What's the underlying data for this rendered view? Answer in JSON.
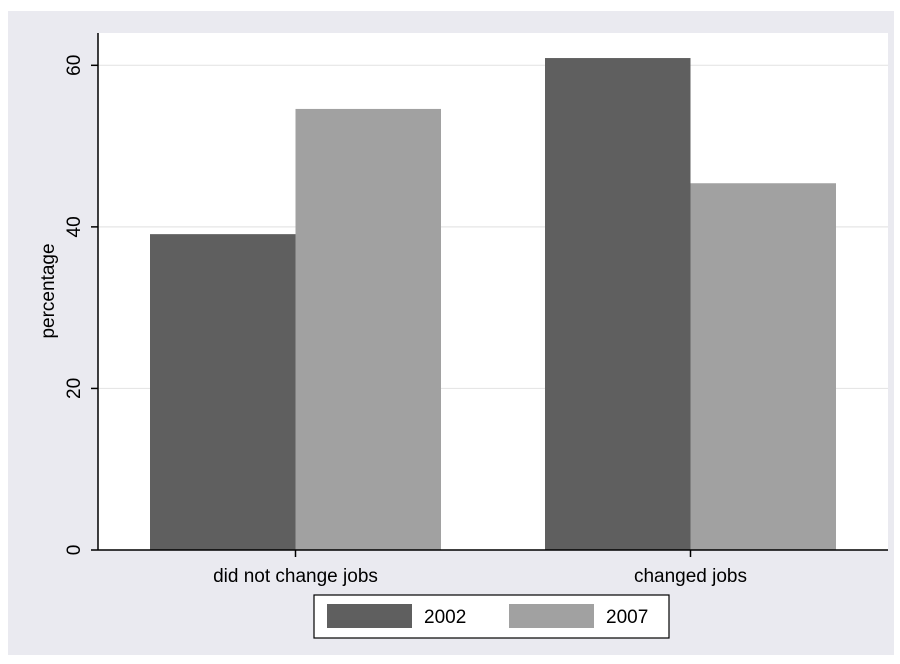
{
  "chart_data": {
    "type": "bar",
    "categories": [
      "did not change jobs",
      "changed jobs"
    ],
    "series": [
      {
        "name": "2002",
        "values": [
          39.1,
          60.9
        ],
        "color": "#5f5f5f"
      },
      {
        "name": "2007",
        "values": [
          54.6,
          45.4
        ],
        "color": "#a1a1a1"
      }
    ],
    "xlabel": "",
    "ylabel": "percentage",
    "ylim": [
      0,
      64
    ],
    "yticks": [
      0,
      20,
      40,
      60
    ],
    "grid": true,
    "legend": "bottom"
  },
  "colors": {
    "outer_background": "#eaeaf0",
    "plot_background": "#ffffff",
    "gridline": "#e6e6e6"
  }
}
